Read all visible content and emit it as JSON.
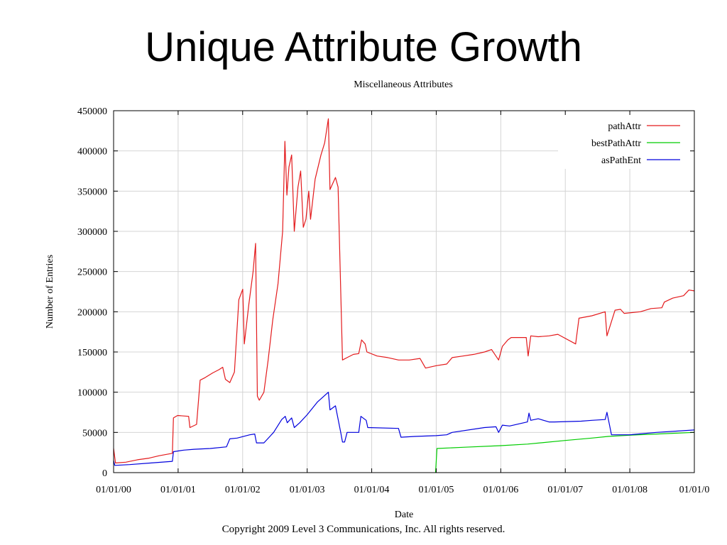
{
  "slide": {
    "title": "Unique Attribute Growth",
    "copyright": "Copyright 2009 Level 3 Communications, Inc. All rights reserved."
  },
  "chart_data": {
    "type": "line",
    "title": "Miscellaneous Attributes",
    "xlabel": "Date",
    "ylabel": "Number of Entries",
    "xlim": [
      "2000-01-01",
      "2009-01-01"
    ],
    "ylim": [
      0,
      450000
    ],
    "x_ticks": [
      "01/01/00",
      "01/01/01",
      "01/01/02",
      "01/01/03",
      "01/01/04",
      "01/01/05",
      "01/01/06",
      "01/01/07",
      "01/01/08",
      "01/01/0"
    ],
    "y_ticks": [
      "0",
      "50000",
      "100000",
      "150000",
      "200000",
      "250000",
      "300000",
      "350000",
      "400000",
      "450000"
    ],
    "grid": true,
    "legend_position": "top-right",
    "series": [
      {
        "name": "pathAttr",
        "color": "#e31a1c",
        "points": [
          [
            "2000-01-01",
            30000
          ],
          [
            "2000-01-12",
            12000
          ],
          [
            "2000-03-10",
            13000
          ],
          [
            "2000-05-15",
            16000
          ],
          [
            "2000-07-20",
            18000
          ],
          [
            "2000-09-15",
            21000
          ],
          [
            "2000-11-29",
            24000
          ],
          [
            "2000-12-05",
            68000
          ],
          [
            "2000-12-28",
            71000
          ],
          [
            "2001-03-01",
            70000
          ],
          [
            "2001-03-08",
            56000
          ],
          [
            "2001-04-15",
            60000
          ],
          [
            "2001-05-05",
            115000
          ],
          [
            "2001-06-01",
            118000
          ],
          [
            "2001-07-15",
            124000
          ],
          [
            "2001-08-20",
            128000
          ],
          [
            "2001-09-10",
            131000
          ],
          [
            "2001-09-25",
            116000
          ],
          [
            "2001-10-20",
            112000
          ],
          [
            "2001-11-15",
            125000
          ],
          [
            "2001-12-10",
            215000
          ],
          [
            "2002-01-01",
            228000
          ],
          [
            "2002-01-10",
            160000
          ],
          [
            "2002-02-05",
            210000
          ],
          [
            "2002-03-01",
            250000
          ],
          [
            "2002-03-15",
            285000
          ],
          [
            "2002-03-25",
            95000
          ],
          [
            "2002-04-05",
            90000
          ],
          [
            "2002-05-01",
            100000
          ],
          [
            "2002-05-25",
            140000
          ],
          [
            "2002-06-20",
            190000
          ],
          [
            "2002-07-20",
            235000
          ],
          [
            "2002-08-15",
            300000
          ],
          [
            "2002-08-28",
            412000
          ],
          [
            "2002-09-08",
            345000
          ],
          [
            "2002-09-20",
            380000
          ],
          [
            "2002-10-05",
            395000
          ],
          [
            "2002-10-20",
            300000
          ],
          [
            "2002-11-10",
            355000
          ],
          [
            "2002-11-25",
            375000
          ],
          [
            "2002-12-10",
            305000
          ],
          [
            "2002-12-25",
            315000
          ],
          [
            "2003-01-10",
            350000
          ],
          [
            "2003-01-20",
            315000
          ],
          [
            "2003-02-15",
            365000
          ],
          [
            "2003-03-20",
            395000
          ],
          [
            "2003-04-10",
            410000
          ],
          [
            "2003-05-01",
            440000
          ],
          [
            "2003-05-10",
            352000
          ],
          [
            "2003-06-10",
            367000
          ],
          [
            "2003-06-25",
            355000
          ],
          [
            "2003-07-20",
            140000
          ],
          [
            "2003-08-15",
            143000
          ],
          [
            "2003-09-20",
            147000
          ],
          [
            "2003-10-20",
            148000
          ],
          [
            "2003-11-05",
            165000
          ],
          [
            "2003-11-25",
            160000
          ],
          [
            "2003-12-05",
            150000
          ],
          [
            "2004-02-01",
            145000
          ],
          [
            "2004-04-01",
            143000
          ],
          [
            "2004-06-01",
            140000
          ],
          [
            "2004-08-01",
            140000
          ],
          [
            "2004-10-01",
            142000
          ],
          [
            "2004-11-01",
            130000
          ],
          [
            "2005-01-01",
            133000
          ],
          [
            "2005-03-01",
            135000
          ],
          [
            "2005-04-01",
            143000
          ],
          [
            "2005-06-01",
            145000
          ],
          [
            "2005-08-01",
            147000
          ],
          [
            "2005-10-01",
            150000
          ],
          [
            "2005-11-10",
            153000
          ],
          [
            "2005-12-20",
            140000
          ],
          [
            "2006-01-10",
            157000
          ],
          [
            "2006-02-10",
            165000
          ],
          [
            "2006-03-01",
            168000
          ],
          [
            "2006-05-25",
            168000
          ],
          [
            "2006-06-05",
            145000
          ],
          [
            "2006-06-20",
            170000
          ],
          [
            "2006-08-01",
            169000
          ],
          [
            "2006-10-01",
            170000
          ],
          [
            "2006-11-20",
            172000
          ],
          [
            "2007-03-01",
            160000
          ],
          [
            "2007-03-20",
            192000
          ],
          [
            "2007-06-01",
            195000
          ],
          [
            "2007-08-15",
            200000
          ],
          [
            "2007-08-25",
            170000
          ],
          [
            "2007-10-10",
            202000
          ],
          [
            "2007-11-10",
            203000
          ],
          [
            "2007-12-01",
            198000
          ],
          [
            "2008-03-01",
            200000
          ],
          [
            "2008-05-01",
            204000
          ],
          [
            "2008-07-01",
            205000
          ],
          [
            "2008-07-15",
            212000
          ],
          [
            "2008-09-01",
            217000
          ],
          [
            "2008-11-01",
            220000
          ],
          [
            "2008-12-01",
            227000
          ],
          [
            "2009-01-01",
            226000
          ]
        ]
      },
      {
        "name": "bestPathAttr",
        "color": "#00cc00",
        "points": [
          [
            "2004-12-28",
            0
          ],
          [
            "2005-01-05",
            30000
          ],
          [
            "2005-06-01",
            31500
          ],
          [
            "2006-01-01",
            33500
          ],
          [
            "2006-06-01",
            35500
          ],
          [
            "2007-01-01",
            40000
          ],
          [
            "2007-06-01",
            43000
          ],
          [
            "2007-09-01",
            45000
          ],
          [
            "2008-01-01",
            46500
          ],
          [
            "2008-06-01",
            48000
          ],
          [
            "2009-01-01",
            50000
          ]
        ]
      },
      {
        "name": "asPathEnt",
        "color": "#0000dd",
        "points": [
          [
            "2000-01-01",
            15000
          ],
          [
            "2000-01-08",
            9000
          ],
          [
            "2000-04-01",
            10000
          ],
          [
            "2000-08-01",
            12000
          ],
          [
            "2000-11-29",
            14000
          ],
          [
            "2000-12-05",
            26000
          ],
          [
            "2001-02-01",
            28000
          ],
          [
            "2001-04-01",
            29000
          ],
          [
            "2001-07-01",
            30000
          ],
          [
            "2001-10-01",
            32000
          ],
          [
            "2001-10-20",
            42000
          ],
          [
            "2001-12-01",
            43000
          ],
          [
            "2002-02-10",
            47000
          ],
          [
            "2002-03-10",
            48000
          ],
          [
            "2002-03-20",
            37000
          ],
          [
            "2002-05-01",
            37000
          ],
          [
            "2002-06-25",
            50000
          ],
          [
            "2002-08-10",
            66000
          ],
          [
            "2002-08-30",
            70000
          ],
          [
            "2002-09-10",
            62000
          ],
          [
            "2002-10-05",
            68000
          ],
          [
            "2002-10-20",
            56000
          ],
          [
            "2002-11-20",
            62000
          ],
          [
            "2003-01-01",
            72000
          ],
          [
            "2003-03-01",
            88000
          ],
          [
            "2003-05-01",
            100000
          ],
          [
            "2003-05-10",
            78000
          ],
          [
            "2003-06-10",
            83000
          ],
          [
            "2003-07-10",
            50000
          ],
          [
            "2003-07-20",
            38000
          ],
          [
            "2003-08-01",
            38000
          ],
          [
            "2003-08-15",
            50000
          ],
          [
            "2003-10-20",
            50000
          ],
          [
            "2003-11-01",
            70000
          ],
          [
            "2003-12-01",
            65000
          ],
          [
            "2003-12-10",
            56000
          ],
          [
            "2004-06-01",
            55000
          ],
          [
            "2004-06-15",
            44000
          ],
          [
            "2004-09-01",
            45000
          ],
          [
            "2005-01-01",
            46000
          ],
          [
            "2005-03-01",
            47000
          ],
          [
            "2005-04-01",
            50000
          ],
          [
            "2005-10-01",
            56000
          ],
          [
            "2005-12-05",
            57000
          ],
          [
            "2005-12-20",
            50000
          ],
          [
            "2006-01-10",
            59000
          ],
          [
            "2006-02-20",
            58000
          ],
          [
            "2006-06-01",
            63000
          ],
          [
            "2006-06-10",
            74000
          ],
          [
            "2006-06-20",
            65000
          ],
          [
            "2006-08-01",
            67000
          ],
          [
            "2006-10-01",
            63000
          ],
          [
            "2006-11-01",
            63000
          ],
          [
            "2007-04-01",
            64000
          ],
          [
            "2007-06-01",
            65000
          ],
          [
            "2007-08-15",
            66000
          ],
          [
            "2007-08-25",
            75000
          ],
          [
            "2007-09-20",
            47000
          ],
          [
            "2008-01-01",
            47000
          ],
          [
            "2008-06-01",
            50000
          ],
          [
            "2009-01-01",
            53000
          ]
        ]
      }
    ]
  }
}
